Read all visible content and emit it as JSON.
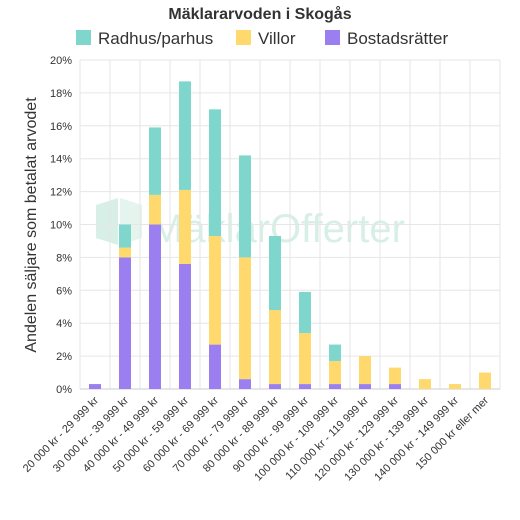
{
  "chart_data": {
    "type": "bar",
    "stacked": true,
    "title": "Mäklararvoden i Skogås",
    "ylabel": "Andelen säljare som betalat arvodet",
    "xlabel": "",
    "ylim": [
      0,
      20
    ],
    "yticks": [
      "0%",
      "2%",
      "4%",
      "6%",
      "8%",
      "10%",
      "12%",
      "14%",
      "16%",
      "18%",
      "20%"
    ],
    "grid": true,
    "legend_position": "top",
    "categories": [
      "20 000 kr - 29 999 kr",
      "30 000 kr - 39 999 kr",
      "40 000 kr - 49 999 kr",
      "50 000 kr - 59 999 kr",
      "60 000 kr - 69 999 kr",
      "70 000 kr - 79 999 kr",
      "80 000 kr - 89 999 kr",
      "90 000 kr - 99 999 kr",
      "100 000 kr - 109 999 kr",
      "110 000 kr - 119 999 kr",
      "120 000 kr - 129 999 kr",
      "130 000 kr - 139 999 kr",
      "140 000 kr - 149 999 kr",
      "150 000 kr eller mer"
    ],
    "series": [
      {
        "name": "Bostadsrätter",
        "color": "#9b7ff0",
        "values": [
          0.3,
          8.0,
          10.0,
          7.6,
          2.7,
          0.6,
          0.3,
          0.3,
          0.3,
          0.3,
          0.3,
          0.0,
          0.0,
          0.0
        ]
      },
      {
        "name": "Villor",
        "color": "#ffd86e",
        "values": [
          0.0,
          0.6,
          1.8,
          4.5,
          6.6,
          7.4,
          4.5,
          3.1,
          1.4,
          1.7,
          1.0,
          0.6,
          0.3,
          1.0
        ]
      },
      {
        "name": "Radhus/parhus",
        "color": "#7ed6cc",
        "values": [
          0.0,
          1.4,
          4.1,
          6.6,
          7.7,
          6.2,
          4.5,
          2.5,
          1.0,
          0.0,
          0.0,
          0.0,
          0.0,
          0.0
        ]
      }
    ],
    "legend_order": [
      "Radhus/parhus",
      "Villor",
      "Bostadsrätter"
    ],
    "watermark": {
      "text": "MäklarOfferter",
      "logo": "maklarofferter-logo"
    }
  }
}
